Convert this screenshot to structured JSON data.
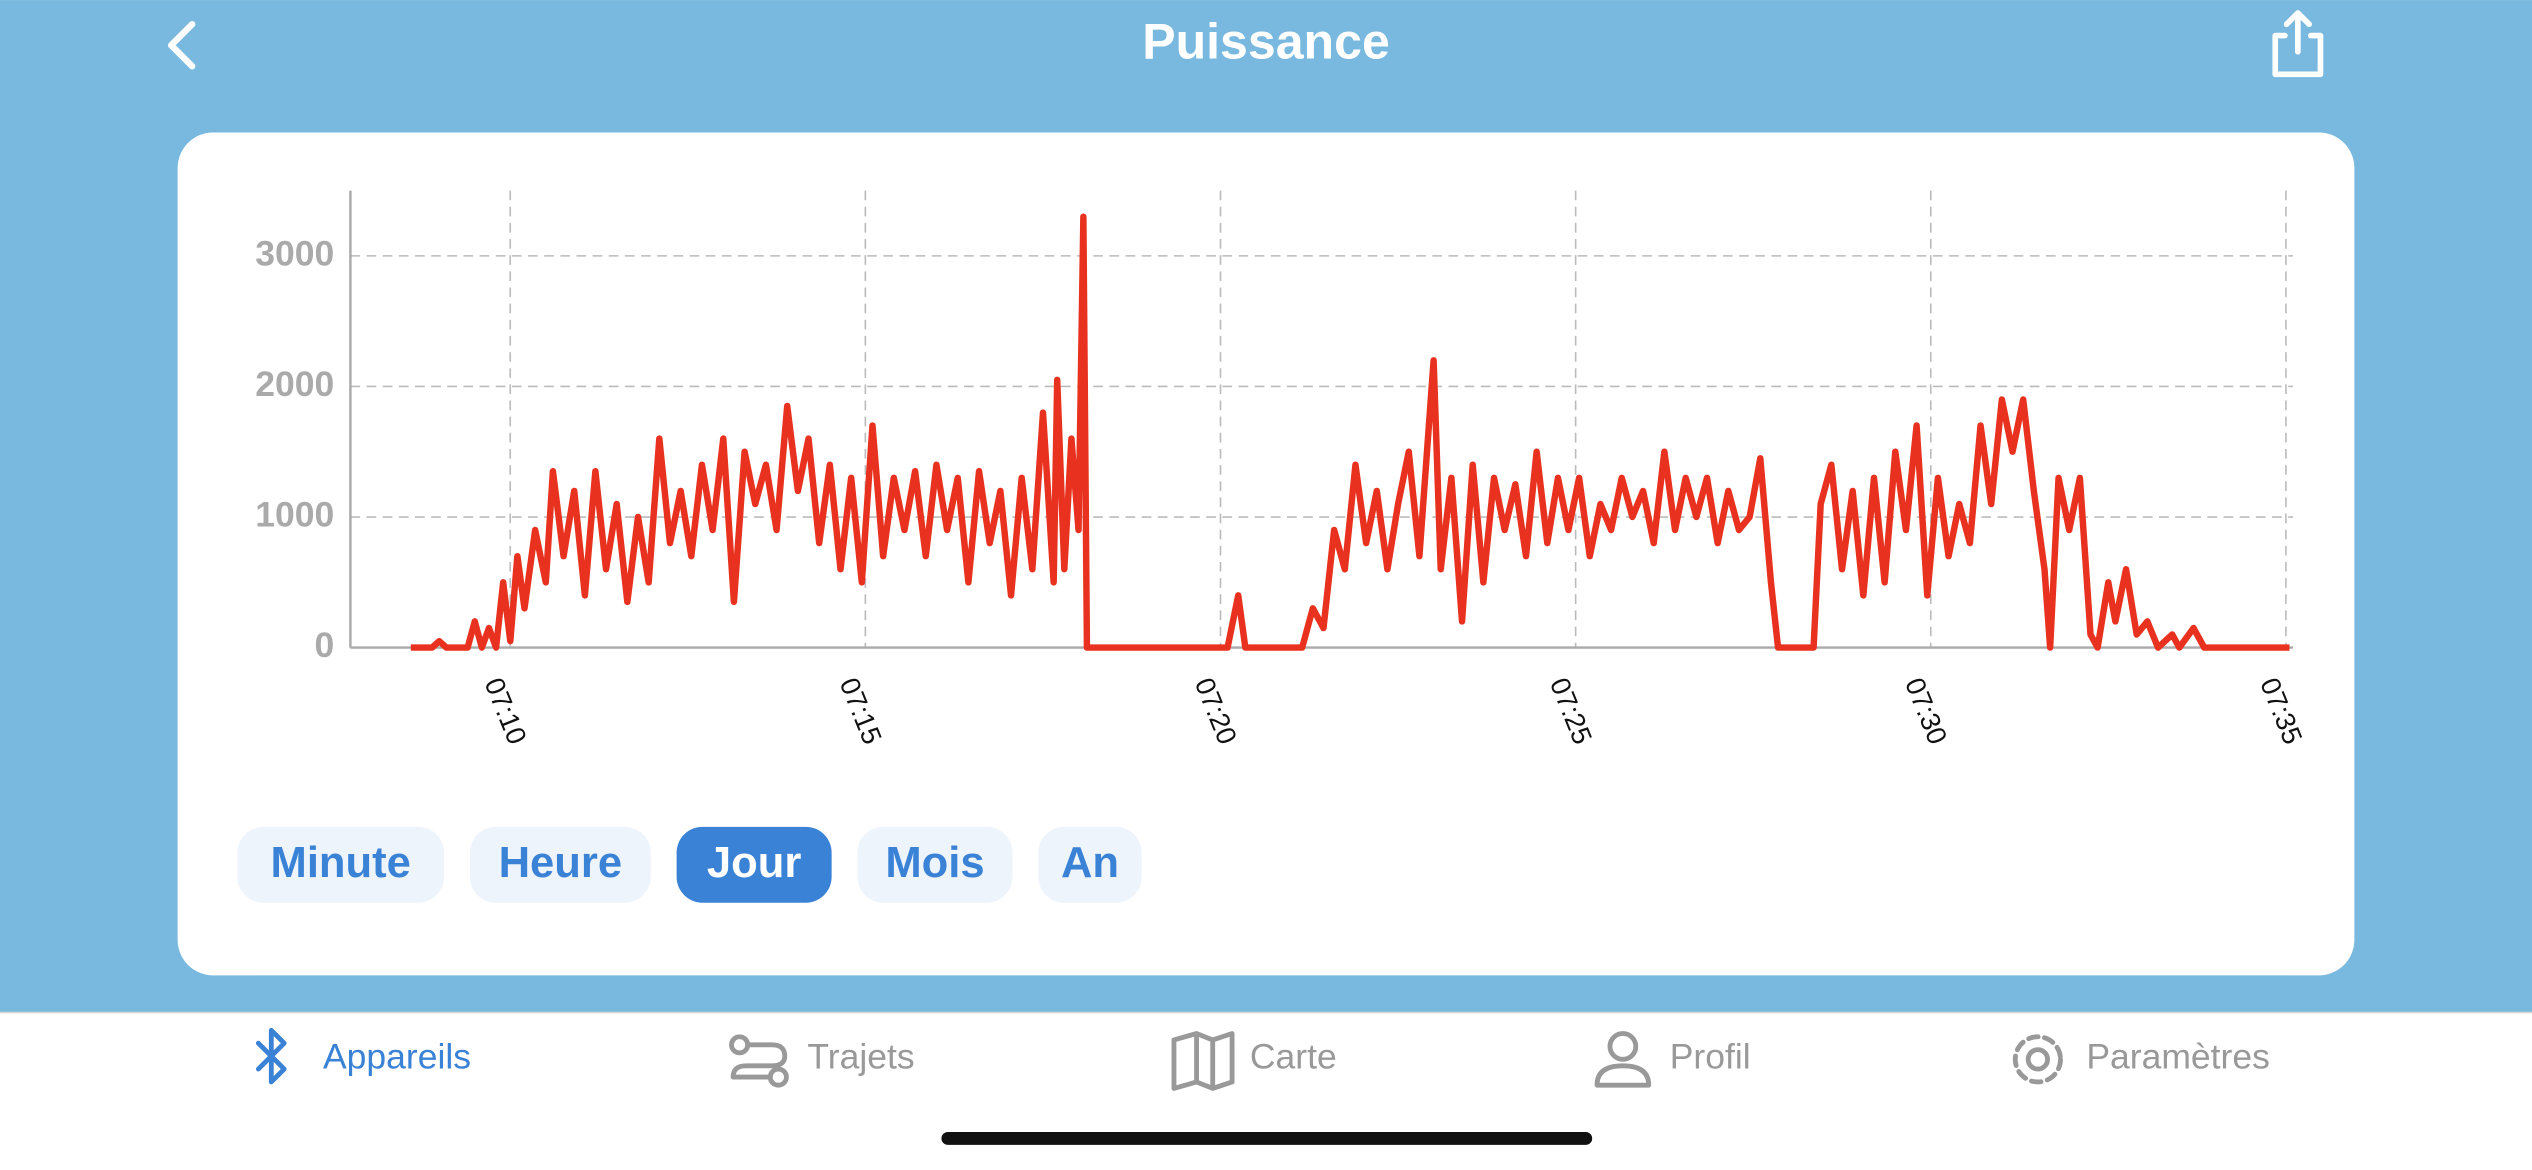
{
  "header": {
    "title": "Puissance"
  },
  "chart_data": {
    "type": "line",
    "color": "#e8321f",
    "grid": true,
    "x": [
      8.6,
      8.9,
      9.0,
      9.1,
      9.4,
      9.5,
      9.6,
      9.7,
      9.8,
      9.9,
      10.0,
      10.1,
      10.2,
      10.35,
      10.5,
      10.6,
      10.75,
      10.9,
      11.05,
      11.2,
      11.35,
      11.5,
      11.65,
      11.8,
      11.95,
      12.1,
      12.25,
      12.4,
      12.55,
      12.7,
      12.85,
      13.0,
      13.15,
      13.3,
      13.45,
      13.6,
      13.75,
      13.9,
      14.05,
      14.2,
      14.35,
      14.5,
      14.65,
      14.8,
      14.95,
      15.1,
      15.25,
      15.4,
      15.55,
      15.7,
      15.85,
      16.0,
      16.15,
      16.3,
      16.45,
      16.6,
      16.75,
      16.9,
      17.05,
      17.2,
      17.35,
      17.5,
      17.65,
      17.7,
      17.8,
      17.9,
      18.0,
      18.07,
      18.12,
      20.1,
      20.25,
      20.35,
      21.15,
      21.3,
      21.45,
      21.6,
      21.75,
      21.9,
      22.05,
      22.2,
      22.35,
      22.5,
      22.65,
      22.8,
      23.0,
      23.1,
      23.25,
      23.4,
      23.55,
      23.7,
      23.85,
      24.0,
      24.15,
      24.3,
      24.45,
      24.6,
      24.75,
      24.9,
      25.05,
      25.2,
      25.35,
      25.5,
      25.65,
      25.8,
      25.95,
      26.1,
      26.25,
      26.4,
      26.55,
      26.7,
      26.85,
      27.0,
      27.15,
      27.3,
      27.45,
      27.6,
      27.75,
      27.85,
      28.35,
      28.45,
      28.6,
      28.75,
      28.9,
      29.05,
      29.2,
      29.35,
      29.5,
      29.65,
      29.8,
      29.95,
      30.1,
      30.25,
      30.4,
      30.55,
      30.7,
      30.85,
      31.0,
      31.15,
      31.3,
      31.45,
      31.6,
      31.68,
      31.8,
      31.95,
      32.1,
      32.25,
      32.35,
      32.5,
      32.6,
      32.75,
      32.9,
      33.05,
      33.2,
      33.4,
      33.5,
      33.7,
      33.85,
      34.1,
      35.05
    ],
    "values": [
      0,
      0,
      50,
      0,
      0,
      200,
      0,
      150,
      0,
      500,
      50,
      700,
      300,
      900,
      500,
      1350,
      700,
      1200,
      400,
      1350,
      600,
      1100,
      350,
      1000,
      500,
      1600,
      800,
      1200,
      700,
      1400,
      900,
      1600,
      350,
      1500,
      1100,
      1400,
      900,
      1850,
      1200,
      1600,
      800,
      1400,
      600,
      1300,
      500,
      1700,
      700,
      1300,
      900,
      1350,
      700,
      1400,
      900,
      1300,
      500,
      1350,
      800,
      1200,
      400,
      1300,
      600,
      1800,
      500,
      2050,
      600,
      1600,
      900,
      3300,
      0,
      0,
      400,
      0,
      0,
      300,
      150,
      900,
      600,
      1400,
      800,
      1200,
      600,
      1100,
      1500,
      700,
      2200,
      600,
      1300,
      200,
      1400,
      500,
      1300,
      900,
      1250,
      700,
      1500,
      800,
      1300,
      900,
      1300,
      700,
      1100,
      900,
      1300,
      1000,
      1200,
      800,
      1500,
      900,
      1300,
      1000,
      1300,
      800,
      1200,
      900,
      1000,
      1450,
      500,
      0,
      0,
      1100,
      1400,
      600,
      1200,
      400,
      1300,
      500,
      1500,
      900,
      1700,
      400,
      1300,
      700,
      1100,
      800,
      1700,
      1100,
      1900,
      1500,
      1900,
      1200,
      600,
      0,
      1300,
      900,
      1300,
      100,
      0,
      500,
      200,
      600,
      100,
      200,
      0,
      100,
      0,
      150,
      0,
      0,
      0
    ],
    "xlim": [
      7.75,
      35.1
    ],
    "ylim": [
      0,
      3500
    ],
    "xticks": [
      {
        "value": 10,
        "label": "07:10"
      },
      {
        "value": 15,
        "label": "07:15"
      },
      {
        "value": 20,
        "label": "07:20"
      },
      {
        "value": 25,
        "label": "07:25"
      },
      {
        "value": 30,
        "label": "07:30"
      },
      {
        "value": 35,
        "label": "07:35"
      }
    ],
    "yticks": [
      0,
      1000,
      2000,
      3000
    ]
  },
  "periods": {
    "buttons": [
      "Minute",
      "Heure",
      "Jour",
      "Mois",
      "An"
    ],
    "selected": 2
  },
  "tabs": {
    "items": [
      "Appareils",
      "Trajets",
      "Carte",
      "Profil",
      "Paramètres"
    ],
    "selected": 0
  }
}
